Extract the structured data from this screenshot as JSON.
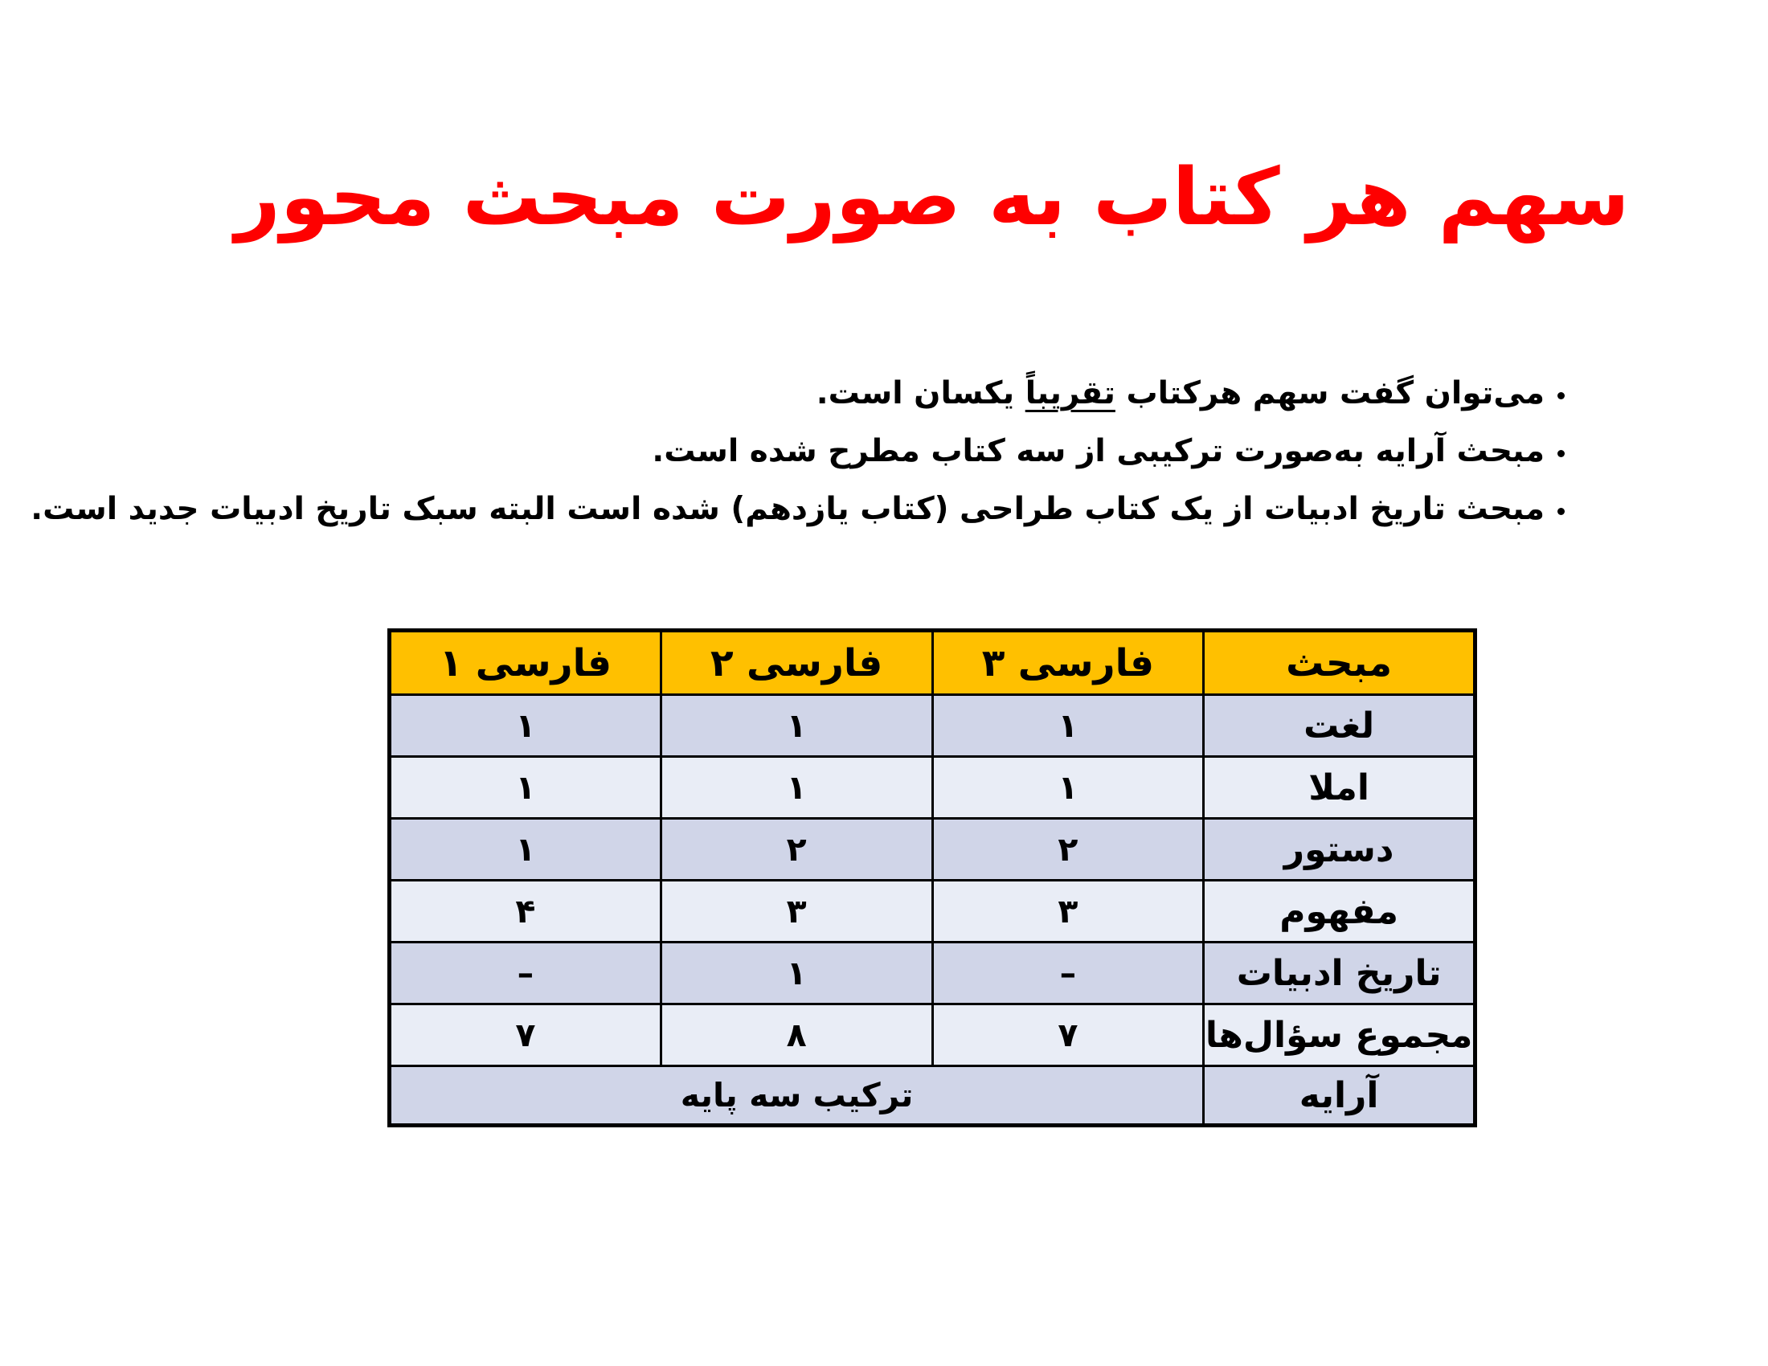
{
  "colors": {
    "page_bg": "#ffffff",
    "title_red": "#fe0000",
    "header_bg": "#ffc000",
    "row_dark": "#d0d5e8",
    "row_light": "#e9edf6",
    "border_black": "#000000"
  },
  "title": {
    "text": "سهم هر کتاب به صورت مبحث محور"
  },
  "bullets": [
    {
      "pre": "می‌توان گفت سهم هرکتاب ",
      "underlined": "تقریباً",
      "post": " یکسان است."
    },
    {
      "pre": "مبحث آرایه به‌صورت ترکیبی از سه کتاب مطرح شده است.",
      "underlined": "",
      "post": ""
    },
    {
      "pre": "مبحث تاریخ ادبیات از یک کتاب طراحی (کتاب یازدهم) شده است البته سبک تاریخ ادبیات جدید است.",
      "underlined": "",
      "post": ""
    }
  ],
  "table": {
    "header": [
      "مبحث",
      "فارسی 3",
      "فارسی 2",
      "فارسی 1"
    ],
    "header_fa": [
      "مبحث",
      "فارسی ۳",
      "فارسی ۲",
      "فارسی ۱"
    ],
    "rows": [
      {
        "label": "لغت",
        "cells": [
          "۱",
          "۱",
          "۱"
        ]
      },
      {
        "label": "املا",
        "cells": [
          "۱",
          "۱",
          "۱"
        ]
      },
      {
        "label": "دستور",
        "cells": [
          "۲",
          "۲",
          "۱"
        ]
      },
      {
        "label": "مفهوم",
        "cells": [
          "۳",
          "۳",
          "۴"
        ]
      },
      {
        "label": "تاریخ ادبیات",
        "cells": [
          "–",
          "۱",
          "–"
        ]
      },
      {
        "label": "مجموع سؤال‌ها",
        "cells": [
          "۷",
          "۸",
          "۷"
        ]
      },
      {
        "label": "آرایه",
        "merged": "ترکیب سه پایه"
      }
    ]
  }
}
